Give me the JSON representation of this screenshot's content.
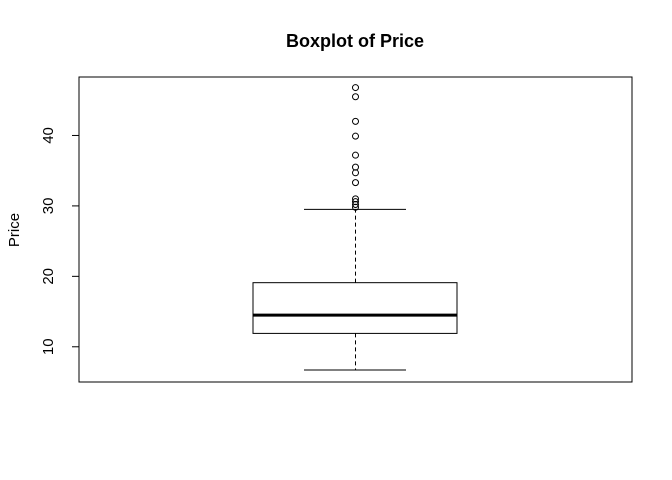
{
  "chart_data": {
    "type": "boxplot",
    "title": "Boxplot of Price",
    "xlabel": "",
    "ylabel": "Price",
    "ylim": [
      5.0,
      48.3
    ],
    "yticks": [
      10,
      20,
      30,
      40
    ],
    "ytick_labels": [
      "10",
      "20",
      "30",
      "40"
    ],
    "grid": false,
    "box": {
      "min_whisker": 6.7,
      "q1": 11.9,
      "median": 14.5,
      "q3": 19.1,
      "max_whisker": 29.5
    },
    "outliers": [
      29.8,
      30.2,
      30.6,
      31.0,
      33.3,
      34.7,
      35.5,
      37.2,
      39.9,
      42.0,
      45.5,
      46.8
    ]
  }
}
